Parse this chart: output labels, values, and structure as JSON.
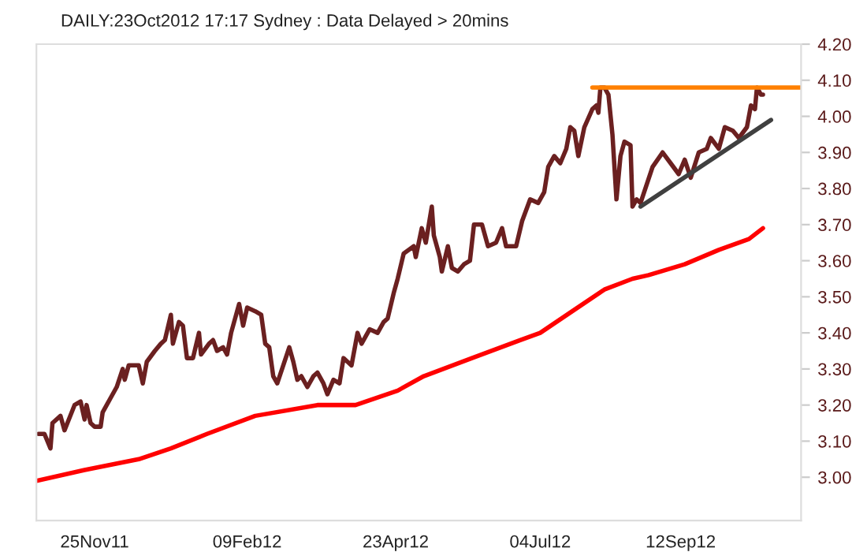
{
  "chart_data": {
    "type": "line",
    "title": "DAILY:23Oct2012 17:17 Sydney : Data Delayed > 20mins",
    "xlim": [
      "2011-10-27",
      "2012-11-11"
    ],
    "xticks": [
      {
        "value": "2011-11-25",
        "label": "25Nov11"
      },
      {
        "value": "2012-02-09",
        "label": "09Feb12"
      },
      {
        "value": "2012-04-23",
        "label": "23Apr12"
      },
      {
        "value": "2012-07-04",
        "label": "04Jul12"
      },
      {
        "value": "2012-09-12",
        "label": "12Sep12"
      }
    ],
    "ylim": [
      2.88,
      4.2
    ],
    "yticks": [
      {
        "value": 3.0,
        "label": "3.00"
      },
      {
        "value": 3.1,
        "label": "3.10"
      },
      {
        "value": 3.2,
        "label": "3.20"
      },
      {
        "value": 3.3,
        "label": "3.30"
      },
      {
        "value": 3.4,
        "label": "3.40"
      },
      {
        "value": 3.5,
        "label": "3.50"
      },
      {
        "value": 3.6,
        "label": "3.60"
      },
      {
        "value": 3.7,
        "label": "3.70"
      },
      {
        "value": 3.8,
        "label": "3.80"
      },
      {
        "value": 3.9,
        "label": "3.90"
      },
      {
        "value": 4.0,
        "label": "4.00"
      },
      {
        "value": 4.1,
        "label": "4.10"
      },
      {
        "value": 4.2,
        "label": "4.20"
      }
    ],
    "grid": false,
    "legend": false,
    "marker": "none",
    "line_style": "solid",
    "series": [
      {
        "color": "#6b2020",
        "x": [
          "2011-10-28",
          "2011-10-31",
          "2011-11-03",
          "2011-11-04",
          "2011-11-08",
          "2011-11-10",
          "2011-11-15",
          "2011-11-18",
          "2011-11-20",
          "2011-11-21",
          "2011-11-23",
          "2011-11-25",
          "2011-11-28",
          "2011-11-29",
          "2011-12-03",
          "2011-12-06",
          "2011-12-09",
          "2011-12-10",
          "2011-12-12",
          "2011-12-17",
          "2011-12-19",
          "2011-12-21",
          "2011-12-25",
          "2011-12-28",
          "2011-12-30",
          "2012-01-02",
          "2012-01-03",
          "2012-01-06",
          "2012-01-08",
          "2012-01-10",
          "2012-01-13",
          "2012-01-16",
          "2012-01-17",
          "2012-01-21",
          "2012-01-23",
          "2012-01-25",
          "2012-01-28",
          "2012-01-30",
          "2012-02-01",
          "2012-02-05",
          "2012-02-07",
          "2012-02-09",
          "2012-02-13",
          "2012-02-16",
          "2012-02-18",
          "2012-02-20",
          "2012-02-22",
          "2012-02-24",
          "2012-03-01",
          "2012-03-03",
          "2012-03-05",
          "2012-03-07",
          "2012-03-10",
          "2012-03-13",
          "2012-03-15",
          "2012-03-18",
          "2012-03-20",
          "2012-03-23",
          "2012-03-26",
          "2012-03-28",
          "2012-03-30",
          "2012-04-01",
          "2012-04-04",
          "2012-04-06",
          "2012-04-10",
          "2012-04-14",
          "2012-04-17",
          "2012-04-19",
          "2012-04-22",
          "2012-04-24",
          "2012-04-27",
          "2012-05-02",
          "2012-05-03",
          "2012-05-06",
          "2012-05-08",
          "2012-05-11",
          "2012-05-12",
          "2012-05-15",
          "2012-05-16",
          "2012-05-19",
          "2012-05-21",
          "2012-05-24",
          "2012-05-27",
          "2012-05-30",
          "2012-06-01",
          "2012-06-05",
          "2012-06-08",
          "2012-06-12",
          "2012-06-15",
          "2012-06-17",
          "2012-06-22",
          "2012-06-25",
          "2012-06-29",
          "2012-07-03",
          "2012-07-06",
          "2012-07-08",
          "2012-07-11",
          "2012-07-14",
          "2012-07-17",
          "2012-07-19",
          "2012-07-21",
          "2012-07-23",
          "2012-07-26",
          "2012-07-30",
          "2012-08-01",
          "2012-08-02",
          "2012-08-03",
          "2012-08-05",
          "2012-08-07",
          "2012-08-09",
          "2012-08-11",
          "2012-08-13",
          "2012-08-15",
          "2012-08-18",
          "2012-08-19",
          "2012-08-21",
          "2012-08-23",
          "2012-08-29",
          "2012-09-03",
          "2012-09-07",
          "2012-09-11",
          "2012-09-14",
          "2012-09-17",
          "2012-09-21",
          "2012-09-25",
          "2012-09-27",
          "2012-10-01",
          "2012-10-04",
          "2012-10-08",
          "2012-10-11",
          "2012-10-15",
          "2012-10-17",
          "2012-10-19",
          "2012-10-20",
          "2012-10-22",
          "2012-10-23"
        ],
        "values": [
          3.12,
          3.12,
          3.08,
          3.15,
          3.17,
          3.13,
          3.2,
          3.21,
          3.16,
          3.2,
          3.15,
          3.14,
          3.14,
          3.18,
          3.22,
          3.25,
          3.3,
          3.27,
          3.31,
          3.31,
          3.26,
          3.32,
          3.35,
          3.37,
          3.38,
          3.45,
          3.37,
          3.43,
          3.42,
          3.33,
          3.33,
          3.4,
          3.34,
          3.37,
          3.38,
          3.35,
          3.36,
          3.34,
          3.4,
          3.48,
          3.42,
          3.47,
          3.46,
          3.45,
          3.37,
          3.36,
          3.28,
          3.26,
          3.36,
          3.32,
          3.27,
          3.28,
          3.25,
          3.28,
          3.29,
          3.26,
          3.23,
          3.27,
          3.26,
          3.33,
          3.32,
          3.31,
          3.4,
          3.37,
          3.41,
          3.4,
          3.43,
          3.44,
          3.51,
          3.55,
          3.62,
          3.64,
          3.61,
          3.69,
          3.65,
          3.75,
          3.67,
          3.61,
          3.57,
          3.64,
          3.58,
          3.57,
          3.59,
          3.6,
          3.7,
          3.7,
          3.64,
          3.65,
          3.69,
          3.64,
          3.64,
          3.71,
          3.77,
          3.76,
          3.79,
          3.86,
          3.89,
          3.87,
          3.91,
          3.97,
          3.96,
          3.89,
          3.97,
          4.02,
          4.03,
          4.01,
          4.08,
          4.08,
          4.06,
          3.95,
          3.77,
          3.89,
          3.93,
          3.92,
          3.75,
          3.77,
          3.76,
          3.86,
          3.9,
          3.87,
          3.84,
          3.88,
          3.83,
          3.9,
          3.91,
          3.94,
          3.91,
          3.97,
          3.96,
          3.94,
          3.97,
          4.03,
          4.02,
          4.08,
          4.06,
          4.06
        ]
      },
      {
        "color": "#ff0000",
        "x": [
          "2011-10-27",
          "2011-11-20",
          "2011-12-17",
          "2012-01-02",
          "2012-01-20",
          "2012-02-13",
          "2012-03-15",
          "2012-04-03",
          "2012-04-24",
          "2012-05-07",
          "2012-05-31",
          "2012-06-24",
          "2012-07-04",
          "2012-07-20",
          "2012-08-05",
          "2012-08-19",
          "2012-08-27",
          "2012-09-14",
          "2012-10-01",
          "2012-10-16",
          "2012-10-23"
        ],
        "values": [
          2.99,
          3.02,
          3.05,
          3.08,
          3.12,
          3.17,
          3.2,
          3.2,
          3.24,
          3.28,
          3.33,
          3.38,
          3.4,
          3.46,
          3.52,
          3.55,
          3.56,
          3.59,
          3.63,
          3.66,
          3.69
        ]
      },
      {
        "color": "#ff8000",
        "x": [
          "2012-07-30",
          "2012-11-11"
        ],
        "values": [
          4.08,
          4.08
        ]
      },
      {
        "color": "#404040",
        "x": [
          "2012-08-23",
          "2012-10-27"
        ],
        "values": [
          3.75,
          3.99
        ]
      }
    ]
  }
}
